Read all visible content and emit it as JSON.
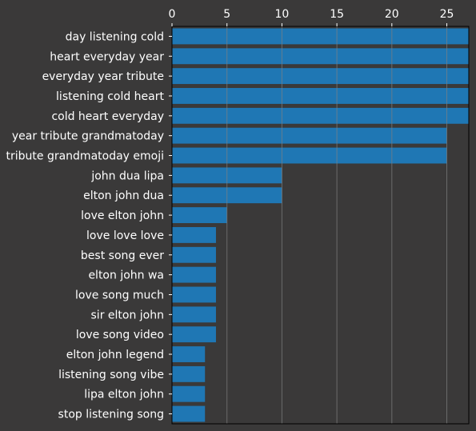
{
  "chart_data": {
    "type": "bar",
    "orientation": "horizontal",
    "categories": [
      "day listening cold",
      "heart everyday year",
      "everyday year tribute",
      "listening cold heart",
      "cold heart everyday",
      "year tribute grandmatoday",
      "tribute grandmatoday emoji",
      "john dua lipa",
      "elton john dua",
      "love elton john",
      "love love love",
      "best song ever",
      "elton john wa",
      "love song much",
      "sir elton john",
      "love song video",
      "elton john legend",
      "listening song vibe",
      "lipa elton john",
      "stop listening song"
    ],
    "values": [
      27,
      27,
      27,
      27,
      27,
      25,
      25,
      10,
      10,
      5,
      4,
      4,
      4,
      4,
      4,
      4,
      3,
      3,
      3,
      3
    ],
    "xticks": [
      0,
      5,
      10,
      15,
      20,
      25
    ],
    "xlim": [
      0,
      27
    ],
    "x_axis_position": "top",
    "grid": true,
    "title": "",
    "xlabel": "",
    "ylabel": "",
    "colors": {
      "bar": "#1f77b4",
      "background": "#3a3939",
      "text": "#ffffff",
      "grid": "#808080",
      "axes": "#000000"
    }
  }
}
